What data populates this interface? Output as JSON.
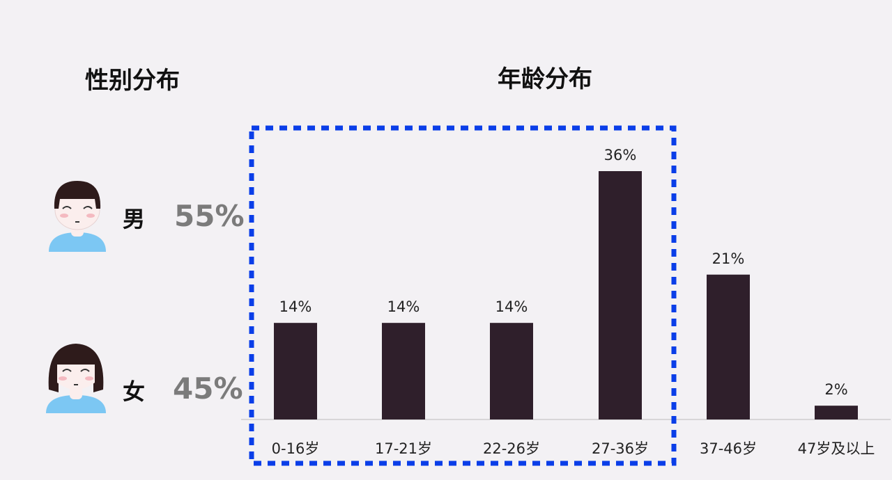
{
  "gender": {
    "title": "性别分布",
    "items": [
      {
        "label": "男",
        "value": "55%",
        "icon": "boy-avatar-icon"
      },
      {
        "label": "女",
        "value": "45%",
        "icon": "girl-avatar-icon"
      }
    ]
  },
  "chart_data": {
    "type": "bar",
    "title": "年龄分布",
    "categories": [
      "0-16岁",
      "17-21岁",
      "22-26岁",
      "27-36岁",
      "37-46岁",
      "47岁及以上"
    ],
    "values": [
      14,
      14,
      14,
      36,
      21,
      2
    ],
    "value_labels": [
      "14%",
      "14%",
      "14%",
      "36%",
      "21%",
      "2%"
    ],
    "ylim": [
      0,
      40
    ],
    "grid": false,
    "bar_color": "#2f1f2b",
    "highlight": {
      "categories": [
        "0-16岁",
        "17-21岁",
        "22-26岁",
        "27-36岁"
      ],
      "style": "dashed-box",
      "color": "#0a3ee8"
    }
  }
}
